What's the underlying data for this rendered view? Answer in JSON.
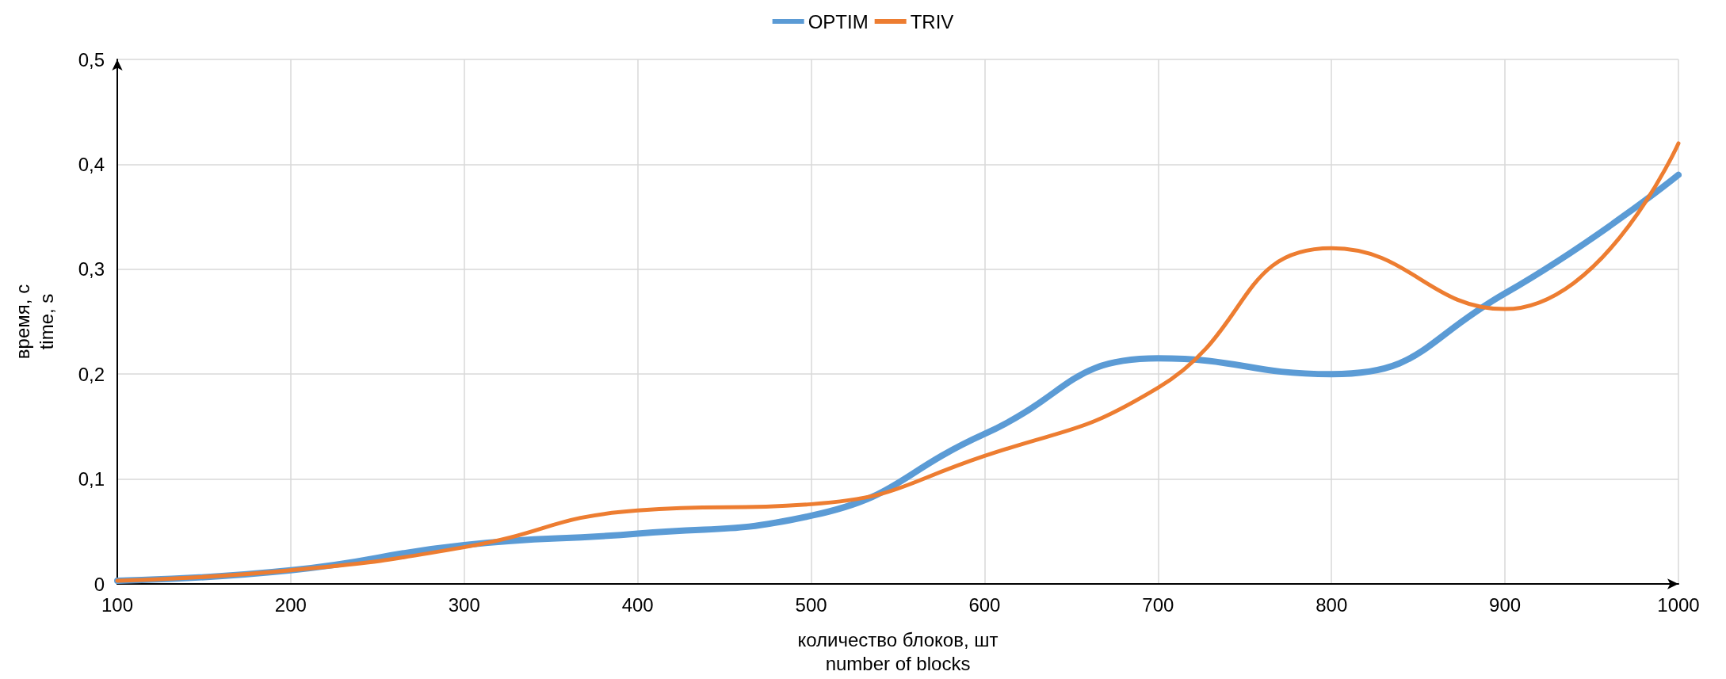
{
  "chart_data": {
    "type": "line",
    "xlabel": "количество блоков, шт\nnumber of blocks",
    "ylabel": "время, с\ntime, s",
    "x": [
      100,
      200,
      300,
      400,
      500,
      600,
      700,
      800,
      900,
      1000
    ],
    "series": [
      {
        "name": "OPTIM",
        "color": "#5b9bd5",
        "values": [
          0.003,
          0.013,
          0.037,
          0.048,
          0.065,
          0.143,
          0.215,
          0.2,
          0.277,
          0.39
        ]
      },
      {
        "name": "TRIV",
        "color": "#ed7d31",
        "values": [
          0.003,
          0.013,
          0.035,
          0.07,
          0.076,
          0.122,
          0.187,
          0.32,
          0.262,
          0.42
        ]
      }
    ],
    "xlim": [
      100,
      1000
    ],
    "xticks": [
      100,
      200,
      300,
      400,
      500,
      600,
      700,
      800,
      900,
      1000
    ],
    "ylim": [
      0,
      0.5
    ],
    "yticks": [
      0,
      {
        "value": 0.1,
        "label": "0,1"
      },
      {
        "value": 0.2,
        "label": "0,2"
      },
      {
        "value": 0.3,
        "label": "0,3"
      },
      {
        "value": 0.4,
        "label": "0,4"
      },
      {
        "value": 0.5,
        "label": "0,5"
      }
    ],
    "grid": true,
    "legend": "top",
    "marker": "none",
    "line_style": "solid"
  }
}
